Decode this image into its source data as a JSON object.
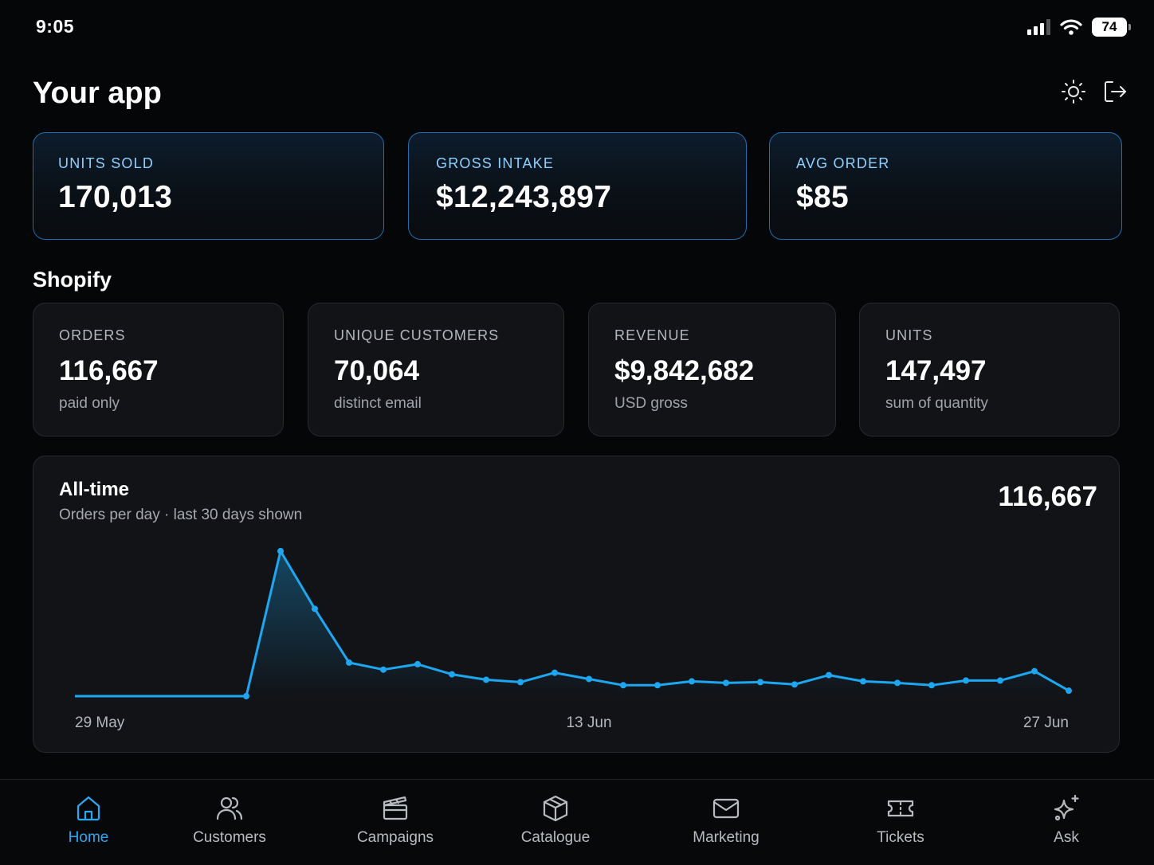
{
  "status_bar": {
    "time": "9:05",
    "battery": "74"
  },
  "header": {
    "title": "Your app",
    "theme_icon": "sun-icon",
    "logout_icon": "logout-icon"
  },
  "kpis": [
    {
      "label": "UNITS SOLD",
      "value": "170,013"
    },
    {
      "label": "GROSS INTAKE",
      "value": "$12,243,897"
    },
    {
      "label": "AVG ORDER",
      "value": "$85"
    }
  ],
  "shopify": {
    "title": "Shopify",
    "stats": [
      {
        "label": "ORDERS",
        "value": "116,667",
        "sub": "paid only"
      },
      {
        "label": "UNIQUE CUSTOMERS",
        "value": "70,064",
        "sub": "distinct email"
      },
      {
        "label": "REVENUE",
        "value": "$9,842,682",
        "sub": "USD gross"
      },
      {
        "label": "UNITS",
        "value": "147,497",
        "sub": "sum of quantity"
      }
    ]
  },
  "chart": {
    "title": "All-time",
    "subtitle": "Orders per day · last 30 days shown",
    "total": "116,667"
  },
  "chart_data": {
    "type": "area",
    "title": "All-time",
    "subtitle": "Orders per day · last 30 days shown",
    "x_tick_labels": [
      "29 May",
      "13 Jun",
      "27 Jun"
    ],
    "x": [
      "29 May",
      "30 May",
      "31 May",
      "1 Jun",
      "2 Jun",
      "3 Jun",
      "4 Jun",
      "5 Jun",
      "6 Jun",
      "7 Jun",
      "8 Jun",
      "9 Jun",
      "10 Jun",
      "11 Jun",
      "12 Jun",
      "13 Jun",
      "14 Jun",
      "15 Jun",
      "16 Jun",
      "17 Jun",
      "18 Jun",
      "19 Jun",
      "20 Jun",
      "21 Jun",
      "22 Jun",
      "23 Jun",
      "24 Jun",
      "25 Jun",
      "26 Jun",
      "27 Jun"
    ],
    "values": [
      0,
      0,
      0,
      0,
      0,
      0,
      186,
      112,
      43,
      34,
      41,
      28,
      21,
      18,
      30,
      22,
      14,
      14,
      19,
      17,
      18,
      15,
      27,
      19,
      17,
      14,
      20,
      20,
      32,
      7
    ],
    "markers_from_index": 5,
    "ylim": [
      0,
      190
    ],
    "color": "#1ea7f0",
    "grid": false
  },
  "tabs": [
    {
      "label": "Home",
      "icon": "home-icon",
      "active": true
    },
    {
      "label": "Customers",
      "icon": "users-icon"
    },
    {
      "label": "Campaigns",
      "icon": "clapperboard-icon"
    },
    {
      "label": "Catalogue",
      "icon": "package-icon"
    },
    {
      "label": "Marketing",
      "icon": "mail-icon"
    },
    {
      "label": "Tickets",
      "icon": "ticket-icon"
    },
    {
      "label": "Ask",
      "icon": "sparkles-icon"
    }
  ],
  "colors": {
    "accent": "#2aa8f5",
    "background": "#050608",
    "card": "#111317",
    "kpi_border": "#1f6fb0"
  }
}
